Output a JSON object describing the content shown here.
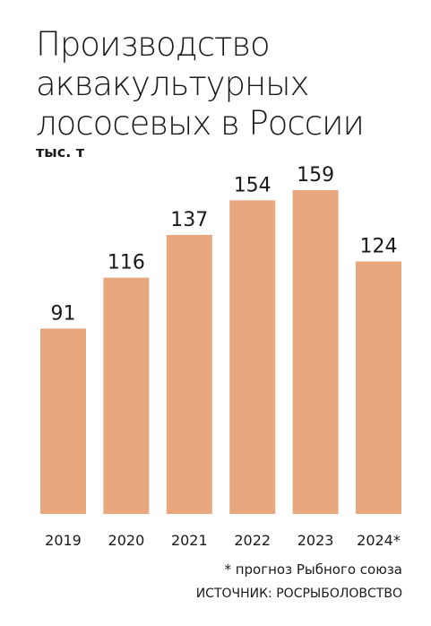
{
  "title_lines": [
    "Производство",
    "аквакультурных",
    "лососевых в России"
  ],
  "unit_label": "тыс. т",
  "footnote": "* прогноз Рыбного союза",
  "source": "ИСТОЧНИК: РОСРЫБОЛОВСТВО",
  "colors": {
    "bar": "#E8A77D",
    "text": "#1a1a1a"
  },
  "chart_data": {
    "type": "bar",
    "categories": [
      "2019",
      "2020",
      "2021",
      "2022",
      "2023",
      "2024*"
    ],
    "values": [
      91,
      116,
      137,
      154,
      159,
      124
    ],
    "data_labels": [
      "91",
      "116",
      "137",
      "154",
      "159",
      "124"
    ],
    "ylabel": "тыс. т",
    "ylim": [
      0,
      159
    ],
    "grid": false,
    "legend": "none"
  }
}
